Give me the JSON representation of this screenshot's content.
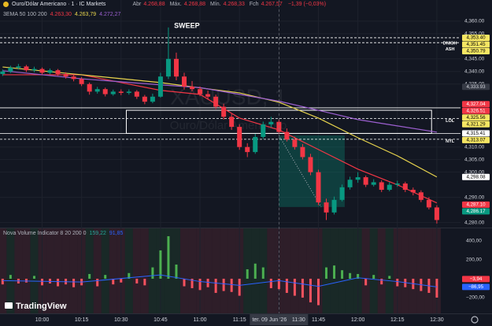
{
  "chart_data": [
    {
      "type": "candlestick",
      "legend": {
        "symbol": "Ouro/Dólar Americano · 1 · IC Markets",
        "fields": [
          {
            "label": "Abr",
            "value": "4.268,88"
          },
          {
            "label": "Máx.",
            "value": "4.268,88"
          },
          {
            "label": "Mín.",
            "value": "4.268,33"
          },
          {
            "label": "Fch",
            "value": "4.267,57"
          }
        ],
        "change": "−1,39 (−0,03%)"
      },
      "indicator": {
        "title": "3EMA 50 100 200",
        "values": [
          {
            "text": "4.263,30",
            "color": "#f23645"
          },
          {
            "text": "4.263,79",
            "color": "#e8d44d"
          },
          {
            "text": "4.272,27",
            "color": "#9c5fd0"
          }
        ]
      },
      "watermark": [
        "XAUUSD, 1",
        "Ouro/Dólar Americano"
      ],
      "x": [
        "09:45",
        "09:48",
        "09:51",
        "09:54",
        "09:57",
        "10:00",
        "10:03",
        "10:06",
        "10:09",
        "10:12",
        "10:15",
        "10:18",
        "10:21",
        "10:24",
        "10:27",
        "10:30",
        "10:33",
        "10:36",
        "10:39",
        "10:42",
        "10:45",
        "10:48",
        "10:51",
        "10:54",
        "10:57",
        "11:00",
        "11:03",
        "11:06",
        "11:09",
        "11:12",
        "11:15",
        "11:18",
        "11:21",
        "11:24",
        "11:27",
        "11:30",
        "11:33",
        "11:36",
        "11:39",
        "11:42",
        "11:45",
        "11:48",
        "11:51",
        "11:54",
        "11:57",
        "12:00",
        "12:03",
        "12:06",
        "12:09",
        "12:12",
        "12:15",
        "12:18",
        "12:21",
        "12:24",
        "12:27",
        "12:30"
      ],
      "open": [
        4339,
        4340,
        4341.5,
        4342,
        4340.5,
        4341,
        4339.5,
        4340.5,
        4339,
        4338,
        4337,
        4335,
        4332,
        4333,
        4331,
        4332,
        4331.5,
        4332,
        4330,
        4328,
        4330,
        4338,
        4345,
        4338,
        4334,
        4333,
        4331,
        4330,
        4326,
        4322,
        4318,
        4310,
        4308,
        4314,
        4319,
        4320,
        4316,
        4313,
        4310,
        4306,
        4300,
        4288,
        4284,
        4289,
        4294,
        4297,
        4298,
        4295,
        4296,
        4293,
        4295,
        4295.5,
        4293,
        4292,
        4289,
        4286
      ],
      "high": [
        4340.8,
        4342.3,
        4343,
        4342.6,
        4341.9,
        4341.6,
        4341.2,
        4341,
        4339.7,
        4338.9,
        4337.8,
        4335.6,
        4333.9,
        4333.6,
        4332.8,
        4332.9,
        4332.9,
        4332.6,
        4330.7,
        4331.2,
        4339.5,
        4357.5,
        4347.5,
        4339.5,
        4336.2,
        4334,
        4332.4,
        4330.8,
        4327.2,
        4323.1,
        4319,
        4311.5,
        4315.2,
        4320.1,
        4322,
        4320.9,
        4317.4,
        4314.1,
        4311.2,
        4307.3,
        4301,
        4289.5,
        4290.3,
        4295.1,
        4298.2,
        4300,
        4298.7,
        4297.2,
        4296.8,
        4296.1,
        4296.6,
        4296.2,
        4293.9,
        4292.8,
        4290.1,
        4286.9
      ],
      "low": [
        4338.2,
        4339.4,
        4340.8,
        4339.8,
        4339.7,
        4338.8,
        4338.9,
        4338.3,
        4337.2,
        4336.1,
        4334.2,
        4330.8,
        4331.2,
        4330.1,
        4330.4,
        4330.6,
        4330.8,
        4329.1,
        4327,
        4327.4,
        4329.6,
        4337,
        4336.5,
        4332.8,
        4332.1,
        4330.2,
        4328.9,
        4325.1,
        4320.9,
        4316.8,
        4308.9,
        4306,
        4307.3,
        4313.2,
        4317.8,
        4315.1,
        4312.2,
        4309,
        4305.1,
        4298.8,
        4286.9,
        4281,
        4283.2,
        4288.4,
        4293.1,
        4295.8,
        4294.1,
        4294.3,
        4292.1,
        4292.4,
        4294.2,
        4292.1,
        4290.8,
        4288.1,
        4285.2,
        4279.6
      ],
      "close": [
        4340,
        4341.5,
        4342,
        4340.5,
        4341,
        4339.5,
        4340.5,
        4339,
        4338,
        4337,
        4335,
        4332,
        4333,
        4331,
        4332,
        4331.5,
        4332,
        4330,
        4328,
        4330,
        4338,
        4345,
        4338,
        4334,
        4333,
        4331,
        4330,
        4326,
        4322,
        4318,
        4310,
        4308,
        4314,
        4319,
        4320,
        4316,
        4313,
        4310,
        4306,
        4300,
        4288,
        4284,
        4289,
        4294,
        4297,
        4298,
        4295,
        4296,
        4293,
        4295,
        4295.5,
        4293,
        4292,
        4289,
        4286,
        4281
      ],
      "up_color": "#089981",
      "down_color": "#f23645",
      "ema": {
        "x": [
          "09:45",
          "10:15",
          "10:45",
          "11:00",
          "11:15",
          "11:30",
          "11:45",
          "12:00",
          "12:15",
          "12:30"
        ],
        "series": [
          {
            "color": "#f23645",
            "values": [
              4338.7,
              4338.7,
              4332.5,
              4330.9,
              4321.5,
              4316.8,
              4309.0,
              4301.2,
              4295.0,
              4287.8
            ]
          },
          {
            "color": "#e8d44d",
            "values": [
              4341.8,
              4338.7,
              4335.6,
              4333.5,
              4331.5,
              4327.8,
              4321.5,
              4313.7,
              4306.5,
              4298.1
            ]
          },
          {
            "color": "#9c5fd0",
            "values": [
              4340.3,
              4337.1,
              4334.7,
              4333.6,
              4330.9,
              4328.2,
              4324.6,
              4320.9,
              4318.4,
              4315.9
            ]
          }
        ]
      },
      "levels": [
        {
          "value": 4353.4,
          "style": "dashed"
        },
        {
          "value": 4351.45,
          "style": "dashed"
        },
        {
          "value": 4325.56,
          "style": "solid"
        },
        {
          "value": 4321.29,
          "style": "dashed"
        },
        {
          "value": 4315.41,
          "style": "solid"
        },
        {
          "value": 4313.07,
          "style": "dashed"
        }
      ],
      "zone": {
        "x": [
          "10:32",
          "12:28"
        ],
        "y": [
          4315.41,
          4324.6
        ]
      },
      "position": {
        "x": [
          "11:30",
          "11:55"
        ],
        "entry": 4314.6,
        "target": 4286.17
      },
      "annotations": [
        {
          "text": "SWEEP",
          "x": "10:55",
          "y": 4358.1
        },
        {
          "text": "DNIGH",
          "x": "12:35",
          "y": 4351.2
        },
        {
          "text": "ASH",
          "x": "12:35",
          "y": 4348.8
        },
        {
          "text": "LOL",
          "x": "12:35",
          "y": 4320.3
        },
        {
          "text": "NYL",
          "x": "12:35",
          "y": 4312.3
        }
      ],
      "badges": [
        {
          "value": 4353.4,
          "label": "4,353.40",
          "bg": "#f5e663",
          "fg": "#000000"
        },
        {
          "value": 4351.45,
          "label": "4,351.45",
          "bg": "#f5e663",
          "fg": "#000000"
        },
        {
          "value": 4350.79,
          "label": "4,350.79",
          "bg": "#f5e663",
          "fg": "#000000"
        },
        {
          "value": 4333.93,
          "label": "4,333.93",
          "bg": "#363a45",
          "fg": "#d1d4dc"
        },
        {
          "value": 4327.04,
          "label": "4,327.04",
          "bg": "#f23645",
          "fg": "#ffffff"
        },
        {
          "value": 4326.51,
          "label": "4,326.51",
          "bg": "#f23645",
          "fg": "#ffffff"
        },
        {
          "value": 4325.56,
          "label": "4,325.56",
          "bg": "#f5e663",
          "fg": "#000000"
        },
        {
          "value": 4321.29,
          "label": "4,321.29",
          "bg": "#f5e663",
          "fg": "#000000"
        },
        {
          "value": 4315.41,
          "label": "4,315.41",
          "bg": "#ffffff",
          "fg": "#000000"
        },
        {
          "value": 4313.07,
          "label": "4,313.07",
          "bg": "#f5e663",
          "fg": "#000000"
        },
        {
          "value": 4298.08,
          "label": "4,298.08",
          "bg": "#ffffff",
          "fg": "#000000"
        },
        {
          "value": 4287.1,
          "label": "4,287.10",
          "bg": "#f23645",
          "fg": "#ffffff"
        },
        {
          "value": 4286.17,
          "label": "4,286.17",
          "bg": "#089981",
          "fg": "#ffffff"
        }
      ],
      "ylim": [
        4278,
        4368.4
      ],
      "yticks": [
        {
          "value": 4360,
          "label": "4,360.00"
        },
        {
          "value": 4355,
          "label": "4,355.00"
        },
        {
          "value": 4345,
          "label": "4,345.00"
        },
        {
          "value": 4340,
          "label": "4,340.00"
        },
        {
          "value": 4335,
          "label": "4,335.00"
        },
        {
          "value": 4310,
          "label": "4,310.00"
        },
        {
          "value": 4305,
          "label": "4,305.00"
        },
        {
          "value": 4300,
          "label": "4,300.00"
        },
        {
          "value": 4290,
          "label": "4,290.00"
        },
        {
          "value": 4280,
          "label": "4,280.00"
        }
      ],
      "xlim": [
        "09:44",
        "12:39"
      ],
      "xticks": [
        "10:00",
        "10:15",
        "10:30",
        "10:45",
        "11:00",
        "11:15",
        "11:30",
        "11:45",
        "12:00",
        "12:15",
        "12:30"
      ],
      "crosshair": {
        "x": "11:30",
        "date": "ter. 09 Jun '26"
      },
      "grid": true
    },
    {
      "type": "bar",
      "title": "Nova Volume Indicator 8 20 200 0",
      "legend_values": [
        {
          "text": "159,22",
          "color": "#26a69a"
        },
        {
          "text": "91,85",
          "color": "#2962ff"
        }
      ],
      "values": [
        -60,
        40,
        -50,
        -40,
        30,
        -70,
        -50,
        -80,
        -60,
        -90,
        -70,
        50,
        -80,
        40,
        -60,
        -40,
        60,
        -50,
        -70,
        120,
        300,
        450,
        150,
        -80,
        -100,
        -120,
        -90,
        -150,
        -130,
        -140,
        -180,
        100,
        160,
        120,
        -100,
        -110,
        -150,
        -180,
        -200,
        -250,
        -280,
        120,
        140,
        90,
        60,
        50,
        -70,
        40,
        -60,
        30,
        -80,
        -90,
        -110,
        -130,
        -150,
        -200
      ],
      "up_color": "#4caf50",
      "down_color": "#f7525f",
      "signal": {
        "x": [
          "09:45",
          "10:15",
          "10:45",
          "11:00",
          "11:15",
          "11:30",
          "11:45",
          "12:00",
          "12:15",
          "12:30"
        ],
        "values": [
          -20,
          -35,
          40,
          -30,
          -70,
          -20,
          -80,
          10,
          -30,
          -87
        ],
        "color": "#2962ff"
      },
      "badges": [
        {
          "value": -3.94,
          "label": "−3,94",
          "bg": "#f23645",
          "fg": "#ffffff"
        },
        {
          "value": -86.95,
          "label": "−86,95",
          "bg": "#2962ff",
          "fg": "#ffffff"
        }
      ],
      "ylim": [
        -367,
        533
      ],
      "yticks": [
        {
          "value": 400,
          "label": "400,00"
        },
        {
          "value": 200,
          "label": "200,00"
        },
        {
          "value": -200,
          "label": "−200,00"
        }
      ]
    }
  ],
  "branding": "TradingView"
}
